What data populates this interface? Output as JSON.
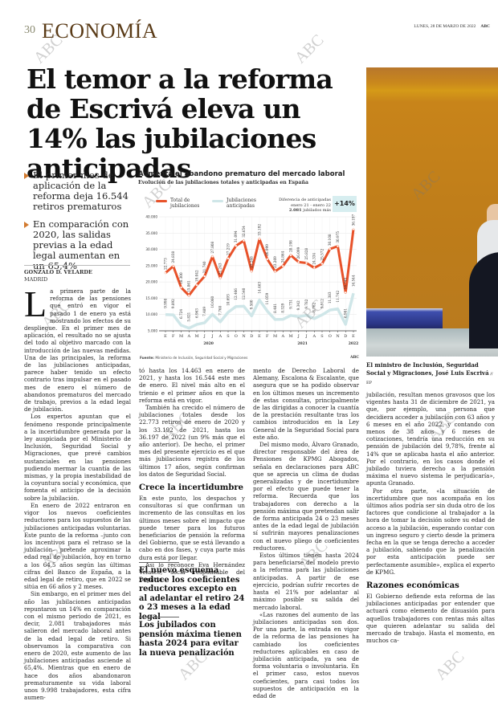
{
  "header": {
    "page_number": "30",
    "section": "ECONOMÍA",
    "date": "LUNES, 28 DE MARZO DE 2022",
    "publication": "ABC"
  },
  "headline": "El temor a la reforma de Escrivá eleva un 14% las jubilaciones anticipadas",
  "bullets": [
    "El primer mes de aplicación de la reforma deja 16.544 retiros prematuros",
    "En comparación con 2020, las salidas previas a la edad legal aumentan en un 65,4%"
  ],
  "byline": {
    "author": "GONZALO D. VELARDE",
    "city": "MADRID"
  },
  "photo": {
    "caption": "El ministro de Inclusión, Seguridad Social y Migraciones, José Luis Escrivá",
    "credit": "EP"
  },
  "chart": {
    "title": "Aumenta el abandono prematuro del mercado laboral",
    "subtitle": "Evolución de las jubilaciones totales y anticipadas en España",
    "legend_total": "Total de jubilaciones",
    "legend_anticipated": "Jubilaciones anticipadas",
    "diff_label_1": "Diferencia de anticipadas",
    "diff_label_2": "enero 21 - enero 22",
    "diff_value": "2.081",
    "diff_suffix": "jubilados más",
    "badge": "+14%",
    "source_label": "Fuente:",
    "source": "Ministerio de Inclusión, Seguridad Social y Migraciones",
    "signature": "ABC"
  },
  "chart_data": {
    "type": "line",
    "title": "Aumenta el abandono prematuro del mercado laboral",
    "subtitle": "Evolución de las jubilaciones totales y anticipadas en España",
    "x": [
      "E",
      "F",
      "M",
      "A",
      "M",
      "J",
      "J",
      "A",
      "S",
      "O",
      "N",
      "D",
      "E",
      "F",
      "M",
      "A",
      "M",
      "J",
      "J",
      "A",
      "S",
      "O",
      "N",
      "D",
      "E"
    ],
    "year_labels": [
      {
        "label": "2020",
        "start": 0,
        "end": 11
      },
      {
        "label": "2021",
        "start": 12,
        "end": 23
      },
      {
        "label": "2022",
        "start": 24,
        "end": 24
      }
    ],
    "series": [
      {
        "name": "Total de jubilaciones",
        "color": "#e8522a",
        "values": [
          22773,
          24838,
          18300,
          15861,
          19042,
          21740,
          27808,
          21243,
          27219,
          31094,
          32654,
          23288,
          33192,
          26999,
          23269,
          24864,
          28198,
          26099,
          25828,
          24334,
          25572,
          30108,
          30975,
          16745,
          36197
        ]
      },
      {
        "name": "Jubilaciones anticipadas",
        "color": "#cfe6e8",
        "values": [
          9998,
          9892,
          6724,
          5821,
          6963,
          7489,
          10060,
          7768,
          10693,
          12466,
          12540,
          9580,
          14463,
          11059,
          8481,
          8529,
          9731,
          9342,
          9782,
          8762,
          9912,
          11383,
          11742,
          6981,
          16544
        ]
      }
    ],
    "ylim": [
      5000,
      40000
    ],
    "yticks": [
      5000,
      10000,
      15000,
      20000,
      25000,
      30000,
      35000,
      40000
    ],
    "ytick_labels": [
      "5.000",
      "10.000",
      "15.000",
      "20.000",
      "25.000",
      "30.000",
      "35.000",
      "40.000"
    ],
    "grid": true,
    "legend_position": "top",
    "annotation": "Diferencia de anticipadas enero 21 - enero 22: 2.081 jubilados más (+14%)"
  },
  "body": {
    "c1": [
      "a primera parte de la reforma de las pensiones que entró en vigor el pasado 1 de enero ya está mostrando los efectos de su despliegue. En el primer mes de aplicación, el resultado no se ajusta del todo al objetivo marcado con la introducción de las nuevas medidas. Una de las principales, la reforma de las jubilaciones anticipadas, parece haber tenido un efecto contrario tras impulsar en el pasado mes de enero el número de abandonos prematuros del mercado de trabajo, previos a la edad legal de jubilación.",
      "Los expertos apuntan que el fenómeno responde principalmente a la incertidumbre generada por la ley auspiciada por el Ministerio de Inclusión, Seguridad Social y Migraciones, que prevé cambios sustanciales en las pensiones pudiendo mermar la cuantía de las mismas, y la propia inestabilidad de la coyuntura social y económica, que fomenta el anticipo de la decisión sobre la jubilación.",
      "En enero de 2022 entraron en vigor los nuevos coeficientes reductores para los supuestos de las jubilaciones anticipadas voluntarias. Este punto de la reforma –junto con los incentivos para el retraso se la jubilación– pretende aproximar la edad real de jubilación, hoy en torno a los 64,5 años según las últimas cifras del Banco de España, a la edad legal de retiro, que en 2022 se sitúa en 66 años y 2 meses.",
      "Sin embargo, en el primer mes del año las jubilaciones anticipadas repuntaron un 14% en comparación con el mismo periodo de 2021, es decir, 2.081 trabajadores más salieron del mercado laboral antes de la edad legal de retiro. Si observamos la comparativa con enero de 2020, este aumento de las jubilaciones anticipadas asciende al 65,4%. Mientras que en enero de hace dos años abandonaron prematuramente su vida laboral unos 9.998 trabajadores, esta cifra aumen-"
    ],
    "dropcap": "L",
    "c2": [
      "tó hasta los 14.463 en enero de 2021, y hasta los 16.544 este mes de enero. El nivel más alto en el trienio e el primer años en que la reforma está en vigor.",
      "También ha crecido el número de jubilaciones totales desde los 22.773 retiros de enero de 2020 y los 33.192 de 2021, hasta los 36.197 de 2022 (un 9% más que el año anterior). De hecho, el primer mes del presente ejercicio es el que más jubilaciones registra de los últimos 17 años, según confirman los datos de Seguridad Social."
    ],
    "c2_subhead": "Crece la incertidumbre",
    "c2b": [
      "En este punto, los despachos y consultoras sí que confirman un incremento de las consultas en los últimos meses sobre el impacto que puede tener para los futuros beneficiarios de pensión la reforma del Gobierno, que se está llevando a cabo en dos fases, y cuya parte más dura está por llegar.",
      "Así lo reconoce Eva Hernández Velasco, socia responsable del Departa-"
    ],
    "pull_quotes": [
      "El nuevo esquema reduce los coeficientes reductores excepto en al adelantar el retiro 24 o 23 meses a la edad legal",
      "Los jubilados con pensión máxima tienen hasta 2024 para evitar la nueva penalización"
    ],
    "c3": [
      "mento de Derecho Laboral de Alemany, Escalona & Escalante, que asegura que se ha podido observar en los últimos meses un incremento de estas consultas, principalmente de las dirigidas a conocer la cuantía de la prestación resultante tras los cambios introducidos en la Ley General de la Seguridad Social para este año.",
      "Del mismo modo, Álvaro Granado, director responsable del área de Pensiones de KPMG Abogados, señala en declaraciones para ABC que se aprecia un clima de dudas generalizadas y de incertidumbre por el efecto que puede tener la reforma. Recuerda que los trabajadores con derecho a la pensión máxima que pretendan salir de forma anticipada 24 o 23 meses antes de la edad legal de jubilación sí sufrirán mayores penalizaciones con el nuevo pliego de coeficientes reductores.",
      "Estos últimos tienen hasta 2024 para beneficiarse del modelo previo a la reforma para las jubilaciones anticipadas. A partir de ese ejercicio, podrían sufrir recortes de hasta el 21% por adelantar al máximo posible su salida del mercado laboral.",
      "«Las razones del aumento de las jubilaciones anticipadas son dos. Por una parte, la entrada en vigor de la reforma de las pensiones ha cambiado los coeficientes reductores aplicables en caso de jubilación anticipada, ya sea de forma voluntaria o involuntaria. En el primer caso, estos nuevos coeficientes, para casi todos los supuestos de anticipación en la edad de"
    ],
    "c4": [
      "jubilación, resultan menos gravosos que los vigentes hasta 31 de diciembre de 2021, ya que, por ejemplo, una persona que decidiera acceder a jubilación con 63 años y 6 meses en el año 2022, y contando con menos de 38 años y 6 meses de cotizaciones, tendría una reducción en su pensión de jubilación del 9,78%, frente al 14% que se aplicaba hasta el año anterior. Por el contrario, en los casos donde el jubilado tuviera derecho a la pensión máxima el nuevo sistema le perjudicaría», apunta Granado.",
      "Por otra parte, «la situación de incertidumbre que nos acompaña en los últimos años podría ser sin duda otro de los factores que condicione al trabajador a la hora de tomar la decisión sobre su edad de acceso a la jubilación, esperando contar con un ingreso seguro y cierto desde la primera fecha en la que se tenga derecho a acceder a jubilación, sabiendo que la penalización por esta anticipación puede ser perfectamente asumible», explica el experto de KPMG."
    ],
    "c4_subhead": "Razones económicas",
    "c4b": [
      "El Gobierno defiende esta reforma de las jubilaciones anticipadas por entender que actuará como elemento de disuasión para aquellos trabajadores con rentas más altas que quieren adelantar su salida del mercado de trabajo. Hasta el momento, en muchos ca-"
    ]
  },
  "watermark": "ABC"
}
